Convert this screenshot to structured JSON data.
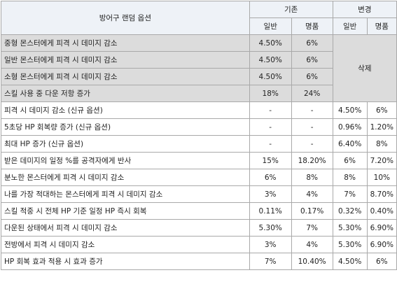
{
  "header": {
    "option": "방어구 랜덤 옵션",
    "before": "기존",
    "after": "변경",
    "normal": "일반",
    "masterpiece": "명품"
  },
  "removed_label": "삭제",
  "rows": [
    {
      "option": "중형 몬스터에게 피격 시 데미지 감소",
      "before_normal": "4.50%",
      "before_master": "6%"
    },
    {
      "option": "일반 몬스터에게 피격 시 데미지 감소",
      "before_normal": "4.50%",
      "before_master": "6%"
    },
    {
      "option": "소형 몬스터에게 피격 시 데미지 감소",
      "before_normal": "4.50%",
      "before_master": "6%"
    },
    {
      "option": "스킬 사용 중 다운 저항 증가",
      "before_normal": "18%",
      "before_master": "24%"
    },
    {
      "option": "피격 시 데미지 감소 (신규 옵션)",
      "before_normal": "-",
      "before_master": "-",
      "after_normal": "4.50%",
      "after_master": "6%"
    },
    {
      "option": "5초당 HP 회복량 증가 (신규 옵션)",
      "before_normal": "-",
      "before_master": "-",
      "after_normal": "0.96%",
      "after_master": "1.20%"
    },
    {
      "option": "최대 HP 증가 (신규 옵션)",
      "before_normal": "-",
      "before_master": "-",
      "after_normal": "6.40%",
      "after_master": "8%"
    },
    {
      "option": "받은 데미지의 일정 %를 공격자에게 반사",
      "before_normal": "15%",
      "before_master": "18.20%",
      "after_normal": "6%",
      "after_master": "7.20%"
    },
    {
      "option": "분노한 몬스터에게 피격 시 데미지 감소",
      "before_normal": "6%",
      "before_master": "8%",
      "after_normal": "8%",
      "after_master": "10%"
    },
    {
      "option": "나를 가장 적대하는 몬스터에게 피격 시 데미지 감소",
      "before_normal": "3%",
      "before_master": "4%",
      "after_normal": "7%",
      "after_master": "8.70%"
    },
    {
      "option": "스킬 적중 시 전체 HP 기준 일정 HP 즉시 회복",
      "before_normal": "0.11%",
      "before_master": "0.17%",
      "after_normal": "0.32%",
      "after_master": "0.40%"
    },
    {
      "option": "다운된 상태에서 피격 시 데미지 감소",
      "before_normal": "5.30%",
      "before_master": "7%",
      "after_normal": "5.30%",
      "after_master": "6.90%"
    },
    {
      "option": "전방에서 피격 시 데미지 감소",
      "before_normal": "3%",
      "before_master": "4%",
      "after_normal": "5.30%",
      "after_master": "6.90%"
    },
    {
      "option": "HP 회복 효과 적용 시 효과 증가",
      "before_normal": "7%",
      "before_master": "10.40%",
      "after_normal": "4.50%",
      "after_master": "6%"
    }
  ],
  "colors": {
    "header_bg": "#eef2f7",
    "removed_row_bg": "#dcdcdc",
    "border": "#a9a9a9"
  }
}
